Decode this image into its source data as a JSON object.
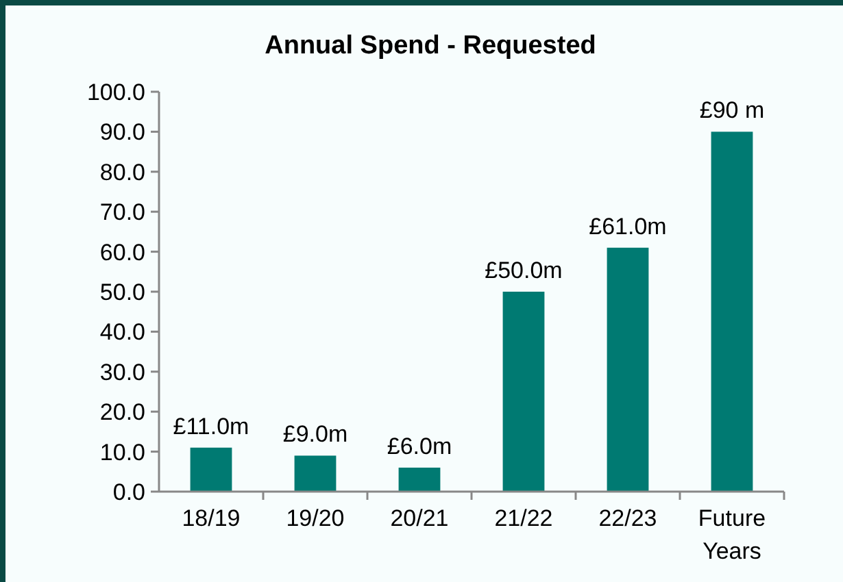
{
  "chart_data": {
    "type": "bar",
    "title": "Annual Spend - Requested",
    "categories": [
      "18/19",
      "19/20",
      "20/21",
      "21/22",
      "22/23",
      "Future\nYears"
    ],
    "values": [
      11,
      9,
      6,
      50,
      61,
      90
    ],
    "value_labels": [
      "£11.0m",
      "£9.0m",
      "£6.0m",
      "£50.0m",
      "£61.0m",
      "£90 m"
    ],
    "color": "#007a72",
    "ylim": [
      0,
      100
    ],
    "yticks": [
      {
        "value": 0,
        "label": "0.0"
      },
      {
        "value": 10,
        "label": "10.0"
      },
      {
        "value": 20,
        "label": "20.0"
      },
      {
        "value": 30,
        "label": "30.0"
      },
      {
        "value": 40,
        "label": "40.0"
      },
      {
        "value": 50,
        "label": "50.0"
      },
      {
        "value": 60,
        "label": "60.0"
      },
      {
        "value": 70,
        "label": "70.0"
      },
      {
        "value": 80,
        "label": "80.0"
      },
      {
        "value": 90,
        "label": "90.0"
      },
      {
        "value": 100,
        "label": "100.0"
      }
    ],
    "grid": false
  }
}
